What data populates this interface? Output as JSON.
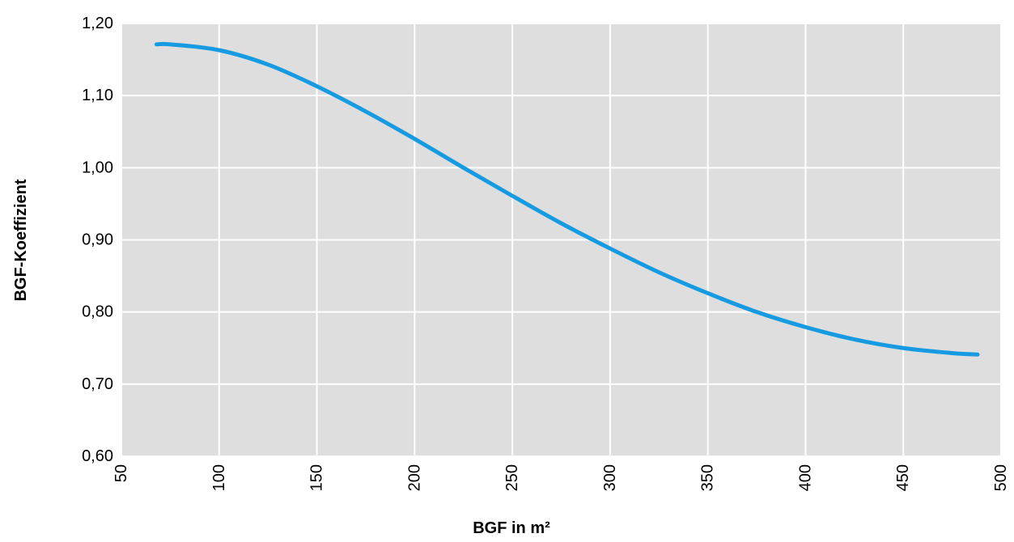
{
  "chart_data": {
    "type": "line",
    "title": "",
    "xlabel": "BGF in m²",
    "ylabel": "BGF-Koeffizient",
    "xlim": [
      50,
      500
    ],
    "ylim": [
      0.6,
      1.2
    ],
    "x_ticks": [
      "50",
      "100",
      "150",
      "200",
      "250",
      "300",
      "350",
      "400",
      "450",
      "500"
    ],
    "y_ticks": [
      "0,60",
      "0,70",
      "0,80",
      "0,90",
      "1,00",
      "1,10",
      "1,20"
    ],
    "grid": true,
    "legend": "none",
    "colors": {
      "plot_background": "#dedede",
      "grid": "#ffffff",
      "line": "#169be2"
    },
    "series": [
      {
        "x": [
          68,
          75,
          100,
          125,
          150,
          175,
          200,
          225,
          250,
          275,
          300,
          325,
          350,
          375,
          400,
          425,
          450,
          475,
          488
        ],
        "y": [
          1.171,
          1.171,
          1.163,
          1.143,
          1.113,
          1.078,
          1.04,
          1.0,
          0.961,
          0.923,
          0.888,
          0.855,
          0.826,
          0.8,
          0.779,
          0.762,
          0.75,
          0.743,
          0.741
        ]
      }
    ]
  }
}
